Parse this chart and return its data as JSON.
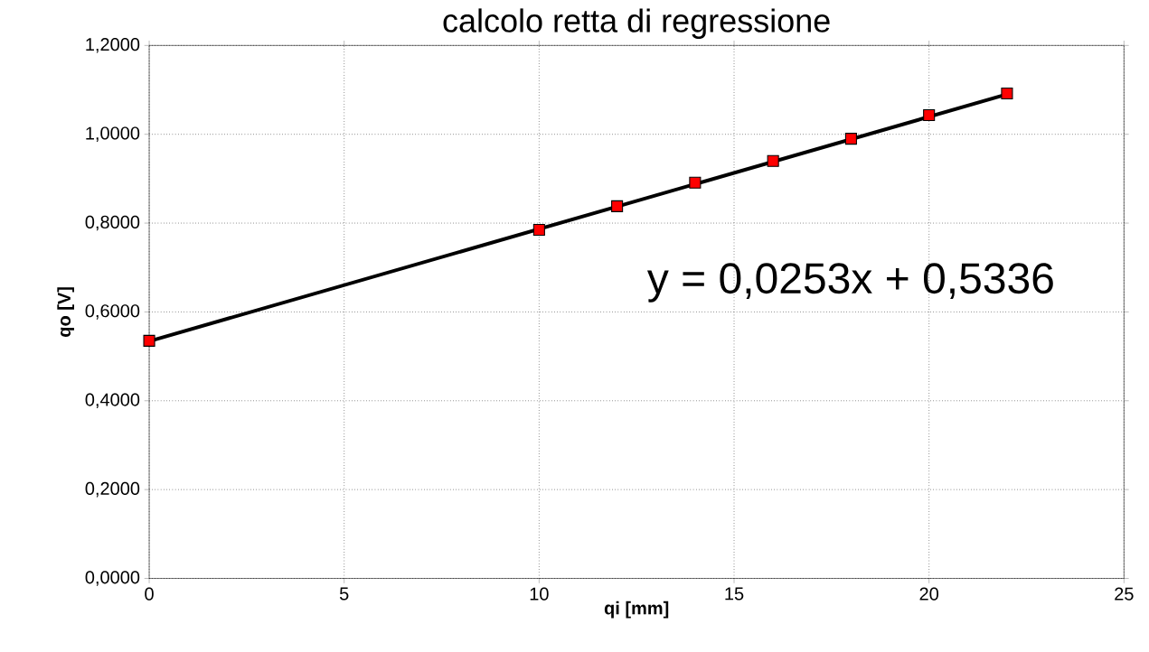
{
  "chart_data": {
    "type": "scatter",
    "title": "calcolo retta di regressione",
    "xlabel": "qi [mm]",
    "ylabel": "qo [V]",
    "annotations": [
      "y = 0,0253x + 0,5336"
    ],
    "xlim": [
      0,
      25
    ],
    "xticks": [
      0,
      5,
      10,
      15,
      20,
      25
    ],
    "ylim": [
      0,
      1.2
    ],
    "yticks": [
      {
        "value": 0,
        "label": "0,0000"
      },
      {
        "value": 0.2,
        "label": "0,2000"
      },
      {
        "value": 0.4,
        "label": "0,4000"
      },
      {
        "value": 0.6,
        "label": "0,6000"
      },
      {
        "value": 0.8,
        "label": "0,8000"
      },
      {
        "value": 1.0,
        "label": "1,0000"
      },
      {
        "value": 1.2,
        "label": "1,2000"
      }
    ],
    "grid": true,
    "marker": "square",
    "series": [
      {
        "type": "line",
        "color": "#000000",
        "marker": "none",
        "x": [
          0,
          22
        ],
        "values": [
          0.534,
          1.09
        ]
      },
      {
        "color": "#ff0000",
        "x": [
          0,
          10,
          12,
          14,
          16,
          18,
          20,
          22
        ],
        "values": [
          0.535,
          0.785,
          0.838,
          0.891,
          0.94,
          0.99,
          1.043,
          1.092
        ]
      }
    ]
  }
}
